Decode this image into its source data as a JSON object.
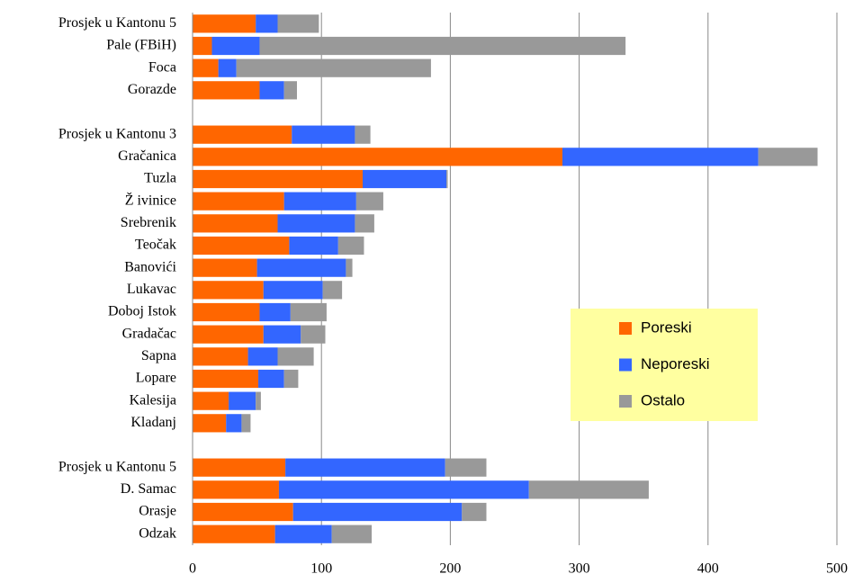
{
  "chart_data": {
    "type": "stacked-bar-horizontal",
    "categories": [
      "Prosjek u  Kantonu 5",
      "Pale (FBiH)",
      "Foca",
      "Gorazde",
      null,
      "Prosjek u  Kantonu 3",
      "Gračanica",
      "Tuzla",
      "Ž ivinice",
      "Srebrenik",
      "Teočak",
      "Banovići",
      "Lukavac",
      "Doboj Istok",
      "Gradačac",
      "Sapna",
      "Lopare",
      "Kalesija",
      "Kladanj",
      null,
      "Prosjek u  Kantonu 5",
      "D. Samac",
      "Orasje",
      "Odzak"
    ],
    "series": [
      {
        "name": "Poreski",
        "color": "#ff6600",
        "values": [
          49,
          15,
          20,
          52,
          null,
          77,
          287,
          132,
          71,
          66,
          75,
          50,
          55,
          52,
          55,
          43,
          51,
          28,
          26,
          null,
          72,
          67,
          78,
          64
        ]
      },
      {
        "name": "Neporeski",
        "color": "#3366ff",
        "values": [
          17,
          37,
          14,
          19,
          null,
          49,
          152,
          65,
          56,
          60,
          38,
          69,
          46,
          24,
          29,
          23,
          20,
          21,
          12,
          null,
          124,
          194,
          131,
          44
        ]
      },
      {
        "name": "Ostalo",
        "color": "#999999",
        "values": [
          32,
          284,
          151,
          10,
          null,
          12,
          46,
          1,
          21,
          15,
          20,
          5,
          15,
          28,
          19,
          28,
          11,
          4,
          7,
          null,
          32,
          93,
          19,
          31
        ]
      }
    ],
    "xlim": [
      0,
      500
    ],
    "xticks": [
      0,
      100,
      200,
      300,
      400,
      500
    ],
    "grid": true,
    "legend": "right"
  }
}
